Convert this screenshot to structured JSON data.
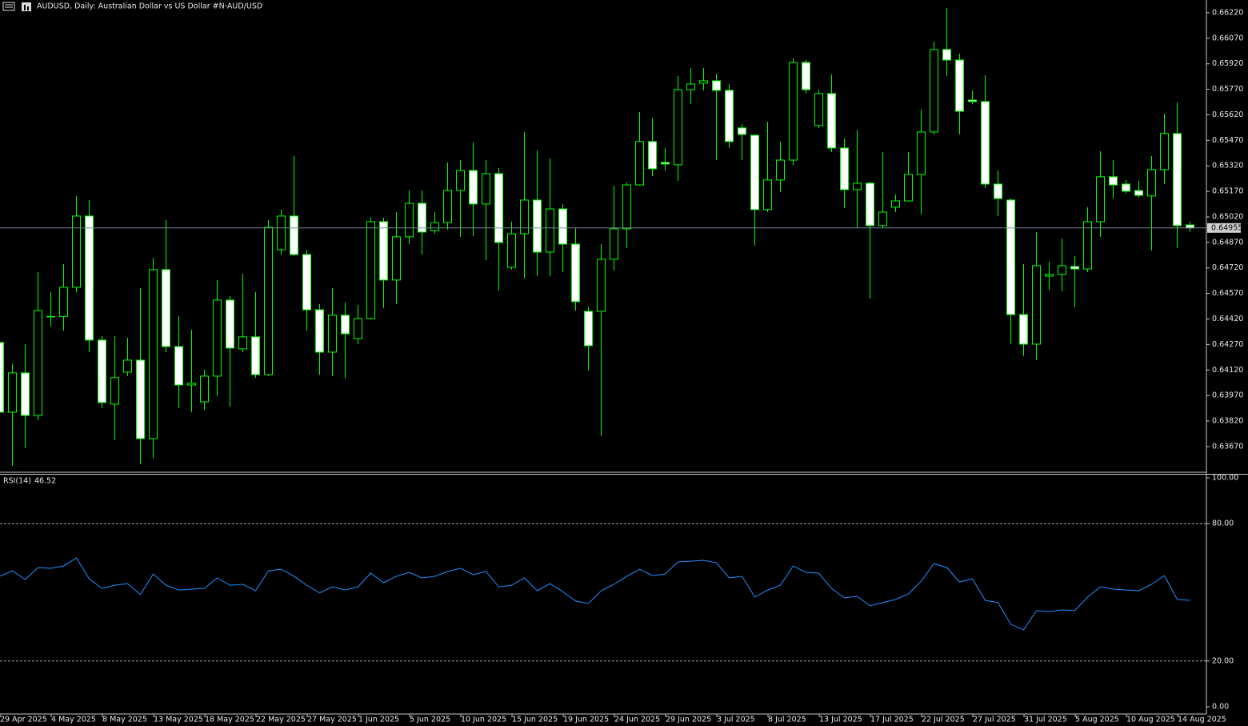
{
  "chart_data": [
    {
      "type": "candlestick",
      "title": "AUDUSD, Daily:  Australian Dollar vs US Dollar #N-AUD/USD",
      "categories": [
        "29 Apr 2025",
        null,
        null,
        null,
        "4 May 2025",
        null,
        null,
        null,
        "8 May 2025",
        null,
        null,
        null,
        "13 May 2025",
        null,
        null,
        null,
        "18 May 2025",
        null,
        null,
        null,
        "22 May 2025",
        null,
        null,
        null,
        "27 May 2025",
        null,
        null,
        null,
        "1 Jun 2025",
        null,
        null,
        null,
        "5 Jun 2025",
        null,
        null,
        null,
        "10 Jun 2025",
        null,
        null,
        null,
        "15 Jun 2025",
        null,
        null,
        null,
        "19 Jun 2025",
        null,
        null,
        null,
        "24 Jun 2025",
        null,
        null,
        null,
        "29 Jun 2025",
        null,
        null,
        null,
        "3 Jul 2025",
        null,
        null,
        null,
        "8 Jul 2025",
        null,
        null,
        null,
        "13 Jul 2025",
        null,
        null,
        null,
        "17 Jul 2025",
        null,
        null,
        null,
        "22 Jul 2025",
        null,
        null,
        null,
        "27 Jul 2025",
        null,
        null,
        null,
        "31 Jul 2025",
        null,
        null,
        null,
        "5 Aug 2025",
        null,
        null,
        null,
        "10 Aug 2025",
        null,
        null,
        null,
        "14 Aug 2025",
        null
      ],
      "open": [
        0.64282,
        0.63872,
        0.64103,
        0.63853,
        0.64432,
        0.64435,
        0.64606,
        0.65025,
        0.64296,
        0.63919,
        0.64108,
        0.64178,
        0.63717,
        0.6471,
        0.64258,
        0.64032,
        0.63933,
        0.64084,
        0.64531,
        0.64244,
        0.64315,
        0.64093,
        0.64827,
        0.65025,
        0.64799,
        0.64474,
        0.64225,
        0.64442,
        0.64305,
        0.64423,
        0.64992,
        0.64649,
        0.64903,
        0.651,
        0.6494,
        0.64987,
        0.65176,
        0.65293,
        0.65096,
        0.65274,
        0.64724,
        0.64921,
        0.65119,
        0.64813,
        0.65067,
        0.6486,
        0.64465,
        0.64465,
        0.64771,
        0.6495,
        0.65208,
        0.65463,
        0.6534,
        0.65326,
        0.65768,
        0.65806,
        0.6582,
        0.65764,
        0.65543,
        0.655,
        0.65063,
        0.65237,
        0.65354,
        0.65928,
        0.65557,
        0.65745,
        0.65425,
        0.6518,
        0.65218,
        0.64969,
        0.65077,
        0.65114,
        0.6527,
        0.65519,
        0.66004,
        0.65942,
        0.65707,
        0.65698,
        0.65213,
        0.65119,
        0.64446,
        0.64272,
        0.64672,
        0.64682,
        0.64729,
        0.64714,
        0.64992,
        0.65256,
        0.65213,
        0.65175,
        0.65143,
        0.65298,
        0.6551,
        0.64973
      ],
      "high": [
        0.64319,
        0.64155,
        0.64272,
        0.64696,
        0.64578,
        0.64743,
        0.65143,
        0.65119,
        0.64319,
        0.64319,
        0.6431,
        0.64602,
        0.6478,
        0.65001,
        0.64437,
        0.64357,
        0.64122,
        0.64649,
        0.64554,
        0.64686,
        0.64578,
        0.65001,
        0.65063,
        0.65378,
        0.64827,
        0.64507,
        0.64602,
        0.64517,
        0.64503,
        0.65016,
        0.65016,
        0.65048,
        0.65176,
        0.65176,
        0.65048,
        0.6534,
        0.65354,
        0.65458,
        0.65354,
        0.65307,
        0.64992,
        0.65519,
        0.65411,
        0.65364,
        0.65096,
        0.64954,
        0.64493,
        0.6486,
        0.65204,
        0.65223,
        0.65637,
        0.65599,
        0.65425,
        0.65848,
        0.65895,
        0.65895,
        0.65862,
        0.65801,
        0.65566,
        0.65505,
        0.6558,
        0.65463,
        0.65952,
        0.65942,
        0.65768,
        0.65858,
        0.65481,
        0.65533,
        0.65227,
        0.65401,
        0.65152,
        0.65401,
        0.65651,
        0.66051,
        0.66248,
        0.6598,
        0.65764,
        0.65853,
        0.65293,
        0.65128,
        0.64743,
        0.64931,
        0.64757,
        0.64893,
        0.6479,
        0.65077,
        0.65406,
        0.65354,
        0.65237,
        0.65232,
        0.65378,
        0.65627,
        0.65693,
        0.64992
      ],
      "low": [
        0.63849,
        0.63557,
        0.63661,
        0.63825,
        0.64376,
        0.64352,
        0.64578,
        0.64225,
        0.63896,
        0.63708,
        0.64084,
        0.63566,
        0.63604,
        0.64225,
        0.63896,
        0.63872,
        0.63886,
        0.63966,
        0.63905,
        0.64225,
        0.64075,
        0.64084,
        0.64799,
        0.6479,
        0.64352,
        0.64093,
        0.64084,
        0.64075,
        0.64272,
        0.64418,
        0.64484,
        0.64507,
        0.6486,
        0.64799,
        0.64921,
        0.64945,
        0.64903,
        0.64907,
        0.64766,
        0.64587,
        0.6471,
        0.64658,
        0.64672,
        0.64672,
        0.64696,
        0.6447,
        0.64117,
        0.63731,
        0.64705,
        0.64837,
        0.65204,
        0.6526,
        0.65293,
        0.65232,
        0.65684,
        0.65764,
        0.65354,
        0.65425,
        0.65354,
        0.64851,
        0.65048,
        0.65166,
        0.65326,
        0.65745,
        0.65543,
        0.65401,
        0.65072,
        0.64954,
        0.6454,
        0.64954,
        0.65048,
        0.6511,
        0.65034,
        0.65505,
        0.65848,
        0.65505,
        0.65684,
        0.6519,
        0.65025,
        0.64272,
        0.64202,
        0.64178,
        0.64592,
        0.64583,
        0.64489,
        0.64696,
        0.64903,
        0.65128,
        0.65157,
        0.65133,
        0.64823,
        0.65213,
        0.64837,
        0.64931
      ],
      "close": [
        0.63872,
        0.64103,
        0.63853,
        0.6447,
        0.64435,
        0.64606,
        0.65025,
        0.64296,
        0.63929,
        0.64075,
        0.64178,
        0.63717,
        0.6471,
        0.64258,
        0.64032,
        0.64042,
        0.64084,
        0.64531,
        0.64249,
        0.64315,
        0.64093,
        0.64959,
        0.65025,
        0.64799,
        0.64474,
        0.64225,
        0.64442,
        0.64333,
        0.64423,
        0.64992,
        0.64649,
        0.64903,
        0.651,
        0.64931,
        0.64987,
        0.65176,
        0.65293,
        0.65096,
        0.65274,
        0.6487,
        0.64921,
        0.65119,
        0.64813,
        0.65067,
        0.6486,
        0.64522,
        0.64263,
        0.64771,
        0.6495,
        0.65208,
        0.65463,
        0.65303,
        0.65331,
        0.65768,
        0.65801,
        0.6582,
        0.65764,
        0.65463,
        0.65505,
        0.65063,
        0.65237,
        0.65354,
        0.65928,
        0.65768,
        0.65745,
        0.65425,
        0.6518,
        0.65218,
        0.64969,
        0.65048,
        0.65114,
        0.6527,
        0.65519,
        0.66004,
        0.65942,
        0.65641,
        0.65698,
        0.65213,
        0.65128,
        0.64446,
        0.64272,
        0.64733,
        0.64682,
        0.64733,
        0.64714,
        0.64992,
        0.65256,
        0.65208,
        0.65171,
        0.65147,
        0.65298,
        0.6551,
        0.64969,
        0.64955
      ],
      "ylim": [
        0.63519,
        0.66295
      ],
      "yticks": [
        {
          "value": 0.6622,
          "label": "0.66220"
        },
        {
          "value": 0.6607,
          "label": "0.66070"
        },
        {
          "value": 0.6592,
          "label": "0.65920"
        },
        {
          "value": 0.6577,
          "label": "0.65770"
        },
        {
          "value": 0.6562,
          "label": "0.65620"
        },
        {
          "value": 0.6547,
          "label": "0.65470"
        },
        {
          "value": 0.6532,
          "label": "0.65320"
        },
        {
          "value": 0.6517,
          "label": "0.65170"
        },
        {
          "value": 0.6502,
          "label": "0.65020"
        },
        {
          "value": 0.6487,
          "label": "0.64870"
        },
        {
          "value": 0.6472,
          "label": "0.64720"
        },
        {
          "value": 0.6457,
          "label": "0.64570"
        },
        {
          "value": 0.6442,
          "label": "0.64420"
        },
        {
          "value": 0.6427,
          "label": "0.64270"
        },
        {
          "value": 0.6412,
          "label": "0.64120"
        },
        {
          "value": 0.6397,
          "label": "0.63970"
        },
        {
          "value": 0.6382,
          "label": "0.63820"
        },
        {
          "value": 0.6367,
          "label": "0.63670"
        }
      ],
      "last_price": {
        "value": 0.64955,
        "label": "0.64955"
      },
      "color": "#00ff00",
      "up_fill": "#000000",
      "down_fill": "#ffffff",
      "price_line_color": "#778899",
      "grid": false
    },
    {
      "type": "line",
      "title": "RSI(14)",
      "current_value": 46.52,
      "values": [
        57.0,
        59.4,
        55.6,
        60.8,
        60.5,
        61.5,
        65.0,
        55.9,
        51.7,
        53.1,
        53.8,
        49.0,
        58.0,
        53.1,
        51.0,
        51.4,
        51.7,
        56.3,
        53.1,
        53.5,
        50.7,
        59.4,
        60.1,
        57.0,
        53.1,
        49.7,
        52.4,
        51.0,
        52.4,
        58.4,
        54.2,
        57.0,
        58.7,
        56.3,
        57.0,
        59.1,
        60.5,
        57.7,
        59.1,
        52.4,
        53.1,
        56.3,
        50.7,
        53.8,
        50.3,
        46.2,
        45.1,
        50.7,
        53.5,
        57.0,
        60.1,
        57.3,
        58.0,
        63.3,
        63.6,
        64.0,
        62.9,
        56.3,
        57.0,
        47.9,
        51.0,
        53.1,
        61.5,
        58.7,
        58.4,
        51.7,
        47.6,
        48.3,
        44.1,
        45.5,
        46.9,
        49.3,
        54.9,
        62.6,
        60.8,
        54.5,
        55.9,
        46.5,
        45.5,
        36.0,
        33.6,
        42.0,
        41.6,
        42.3,
        42.0,
        47.9,
        52.4,
        51.4,
        51.0,
        50.7,
        53.5,
        57.3,
        46.9,
        46.52
      ],
      "ylim": [
        0,
        100
      ],
      "yticks": [
        {
          "value": 100,
          "label": "100.00"
        },
        {
          "value": 80,
          "label": "80.00"
        },
        {
          "value": 20,
          "label": "20.00"
        },
        {
          "value": 0,
          "label": "0.00"
        }
      ],
      "levels": [
        80,
        20
      ],
      "color": "#1e90ff",
      "level_color": "#c0c0c0"
    }
  ]
}
